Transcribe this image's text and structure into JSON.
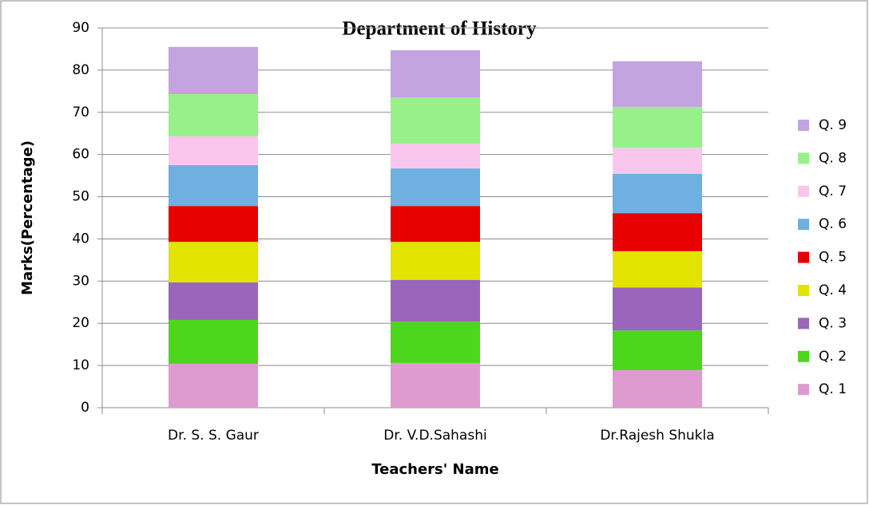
{
  "chart_data": {
    "type": "stacked_bar",
    "title": "Department of History",
    "x_label": "Teachers' Name",
    "y_label": "Marks(Percentage)",
    "categories": [
      "Dr. S. S. Gaur",
      "Dr. V.D.Sahashi",
      "Dr.Rajesh Shukla"
    ],
    "series": [
      {
        "name": "Q. 1",
        "color": "#de9bcf",
        "values": [
          10.4,
          10.6,
          8.9
        ]
      },
      {
        "name": "Q. 2",
        "color": "#4cd61c",
        "values": [
          10.4,
          9.8,
          9.4
        ]
      },
      {
        "name": "Q. 3",
        "color": "#9966bb",
        "values": [
          8.9,
          9.9,
          10.2
        ]
      },
      {
        "name": "Q. 4",
        "color": "#e3e300",
        "values": [
          9.6,
          9.0,
          8.6
        ]
      },
      {
        "name": "Q. 5",
        "color": "#e60000",
        "values": [
          8.5,
          8.5,
          9.0
        ]
      },
      {
        "name": "Q. 6",
        "color": "#6fb0e0",
        "values": [
          9.7,
          8.9,
          9.3
        ]
      },
      {
        "name": "Q. 7",
        "color": "#f9c7ee",
        "values": [
          6.8,
          5.9,
          6.2
        ]
      },
      {
        "name": "Q. 8",
        "color": "#98f08a",
        "values": [
          10.0,
          10.9,
          9.7
        ]
      },
      {
        "name": "Q. 9",
        "color": "#c3a3e0",
        "values": [
          11.2,
          11.2,
          10.8
        ]
      }
    ],
    "ylim": [
      0,
      90
    ],
    "yticks": [
      0,
      10,
      20,
      30,
      40,
      50,
      60,
      70,
      80,
      90
    ],
    "grid": true,
    "legend": "right"
  }
}
